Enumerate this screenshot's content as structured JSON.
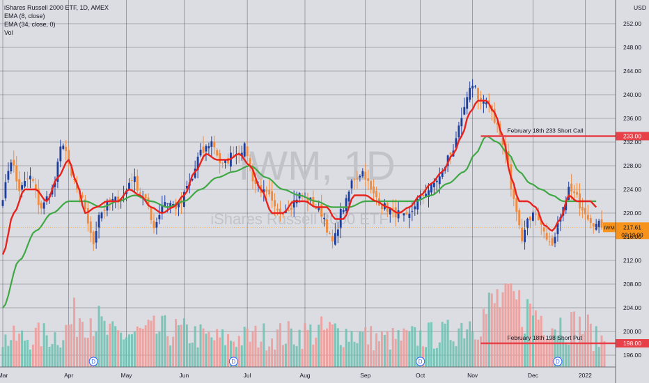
{
  "header": {
    "symbol_line": "iShares Russell 2000 ETF, 1D, AMEX",
    "ema_fast": "EMA (8, close)",
    "ema_slow": "EMA (34, close, 0)",
    "vol": "Vol"
  },
  "watermark": {
    "ticker": "IWM, 1D",
    "name": "iShares Russell 2000 ETF"
  },
  "chart_data": {
    "type": "candlestick",
    "y_axis_unit": "USD",
    "ylim": [
      194,
      256
    ],
    "y_ticks": [
      196,
      200,
      204,
      208,
      212,
      216,
      220,
      224,
      228,
      232,
      236,
      240,
      244,
      248,
      252
    ],
    "y_tick_labels": [
      "196.00",
      "200.00",
      "204.00",
      "208.00",
      "212.00",
      "216.00",
      "220.00",
      "224.00",
      "228.00",
      "232.00",
      "236.00",
      "240.00",
      "244.00",
      "248.00",
      "252.00"
    ],
    "x_months": [
      "Mar",
      "Apr",
      "May",
      "Jun",
      "Jul",
      "Aug",
      "Sep",
      "Oct",
      "Nov",
      "Dec",
      "2022"
    ],
    "x_month_trading_day_index": [
      0,
      24,
      45,
      66,
      89,
      110,
      132,
      152,
      171,
      193,
      212
    ],
    "total_trading_days": 220,
    "colors": {
      "up_candle": "#1f3f9e",
      "down_candle": "#f28a3c",
      "ema_fast": "#e8231d",
      "ema_slow": "#3fa845",
      "vol_up": "#6cbfb1",
      "vol_down": "#ee9a98",
      "level_line": "#e84048",
      "price_tag": "#f7931a",
      "grid": "#4a4c55"
    },
    "price_anchors": [
      [
        0,
        223
      ],
      [
        3,
        229
      ],
      [
        6,
        224
      ],
      [
        10,
        226
      ],
      [
        14,
        221
      ],
      [
        18,
        224
      ],
      [
        22,
        232
      ],
      [
        25,
        226
      ],
      [
        29,
        222
      ],
      [
        33,
        215
      ],
      [
        35,
        220
      ],
      [
        40,
        222
      ],
      [
        44,
        223
      ],
      [
        47,
        226
      ],
      [
        51,
        223
      ],
      [
        55,
        218
      ],
      [
        59,
        222
      ],
      [
        64,
        221
      ],
      [
        68,
        225
      ],
      [
        72,
        230
      ],
      [
        76,
        232
      ],
      [
        80,
        228
      ],
      [
        84,
        230
      ],
      [
        88,
        231
      ],
      [
        92,
        225
      ],
      [
        96,
        223
      ],
      [
        100,
        220
      ],
      [
        104,
        221
      ],
      [
        108,
        223
      ],
      [
        112,
        222
      ],
      [
        116,
        220
      ],
      [
        120,
        215
      ],
      [
        124,
        221
      ],
      [
        128,
        226
      ],
      [
        131,
        227
      ],
      [
        135,
        223
      ],
      [
        139,
        221
      ],
      [
        143,
        220
      ],
      [
        147,
        219
      ],
      [
        151,
        222
      ],
      [
        155,
        224
      ],
      [
        159,
        226
      ],
      [
        163,
        230
      ],
      [
        166,
        234
      ],
      [
        169,
        239
      ],
      [
        171,
        242
      ],
      [
        174,
        239
      ],
      [
        177,
        238
      ],
      [
        180,
        235
      ],
      [
        183,
        230
      ],
      [
        186,
        222
      ],
      [
        189,
        216
      ],
      [
        191,
        219
      ],
      [
        194,
        220
      ],
      [
        197,
        217
      ],
      [
        200,
        214
      ],
      [
        203,
        219
      ],
      [
        206,
        224
      ],
      [
        208,
        223
      ],
      [
        211,
        221
      ],
      [
        214,
        219
      ],
      [
        216,
        218
      ]
    ],
    "ema8_anchors": [
      [
        0,
        213
      ],
      [
        4,
        220
      ],
      [
        8,
        224
      ],
      [
        12,
        224
      ],
      [
        16,
        222
      ],
      [
        20,
        226
      ],
      [
        24,
        229
      ],
      [
        27,
        225
      ],
      [
        30,
        220
      ],
      [
        34,
        221
      ],
      [
        38,
        222
      ],
      [
        42,
        222
      ],
      [
        46,
        224
      ],
      [
        50,
        223
      ],
      [
        54,
        221
      ],
      [
        58,
        220
      ],
      [
        62,
        221
      ],
      [
        66,
        223
      ],
      [
        70,
        227
      ],
      [
        74,
        230
      ],
      [
        78,
        229
      ],
      [
        82,
        229
      ],
      [
        86,
        230
      ],
      [
        90,
        228
      ],
      [
        94,
        224
      ],
      [
        98,
        220
      ],
      [
        102,
        220
      ],
      [
        106,
        222
      ],
      [
        110,
        222
      ],
      [
        114,
        221
      ],
      [
        118,
        221
      ],
      [
        121,
        219
      ],
      [
        124,
        219
      ],
      [
        128,
        223
      ],
      [
        132,
        223
      ],
      [
        136,
        222
      ],
      [
        140,
        221
      ],
      [
        144,
        220
      ],
      [
        148,
        221
      ],
      [
        152,
        223
      ],
      [
        156,
        225
      ],
      [
        160,
        227
      ],
      [
        164,
        230
      ],
      [
        167,
        233
      ],
      [
        170,
        237
      ],
      [
        173,
        239
      ],
      [
        176,
        239
      ],
      [
        179,
        237
      ],
      [
        182,
        233
      ],
      [
        185,
        226
      ],
      [
        188,
        222
      ],
      [
        191,
        222
      ],
      [
        194,
        221
      ],
      [
        197,
        218
      ],
      [
        200,
        217
      ],
      [
        203,
        219
      ],
      [
        206,
        223
      ],
      [
        209,
        222
      ],
      [
        212,
        222
      ],
      [
        214,
        222
      ],
      [
        216,
        221
      ]
    ],
    "ema34_anchors": [
      [
        0,
        204
      ],
      [
        6,
        212
      ],
      [
        12,
        217
      ],
      [
        18,
        220
      ],
      [
        24,
        222
      ],
      [
        30,
        222
      ],
      [
        36,
        221
      ],
      [
        42,
        222
      ],
      [
        48,
        223
      ],
      [
        54,
        222
      ],
      [
        60,
        221
      ],
      [
        66,
        222
      ],
      [
        72,
        224
      ],
      [
        78,
        226
      ],
      [
        84,
        227
      ],
      [
        90,
        228
      ],
      [
        96,
        226
      ],
      [
        102,
        224
      ],
      [
        108,
        223
      ],
      [
        114,
        222
      ],
      [
        120,
        221
      ],
      [
        126,
        221
      ],
      [
        132,
        222
      ],
      [
        138,
        222
      ],
      [
        144,
        222
      ],
      [
        150,
        222
      ],
      [
        156,
        223
      ],
      [
        162,
        225
      ],
      [
        168,
        227
      ],
      [
        172,
        230
      ],
      [
        176,
        233
      ],
      [
        180,
        232
      ],
      [
        184,
        230
      ],
      [
        188,
        227
      ],
      [
        192,
        225
      ],
      [
        196,
        224
      ],
      [
        200,
        223
      ],
      [
        204,
        222
      ],
      [
        208,
        222
      ],
      [
        212,
        222
      ],
      [
        216,
        222
      ]
    ],
    "volume_profile": [
      [
        0,
        0.35
      ],
      [
        20,
        0.4
      ],
      [
        30,
        0.7
      ],
      [
        40,
        0.4
      ],
      [
        60,
        0.45
      ],
      [
        80,
        0.35
      ],
      [
        100,
        0.4
      ],
      [
        120,
        0.45
      ],
      [
        140,
        0.35
      ],
      [
        160,
        0.4
      ],
      [
        172,
        0.6
      ],
      [
        182,
        0.85
      ],
      [
        192,
        0.7
      ],
      [
        202,
        0.55
      ],
      [
        212,
        0.5
      ],
      [
        216,
        0.35
      ]
    ],
    "last_price": "217.61",
    "last_price_value": 217.61,
    "countdown": "03:19:00",
    "last_label": "IWM",
    "levels": [
      {
        "price": 233.0,
        "price_label": "233.00",
        "label": "February 18th 233 Short Call",
        "from_day": 174
      },
      {
        "price": 198.0,
        "price_label": "198.00",
        "label": "February 18th 198 Short Put",
        "from_day": 174
      }
    ],
    "dividend_markers": {
      "letter": "D",
      "days": [
        33,
        84,
        152,
        202
      ]
    }
  }
}
